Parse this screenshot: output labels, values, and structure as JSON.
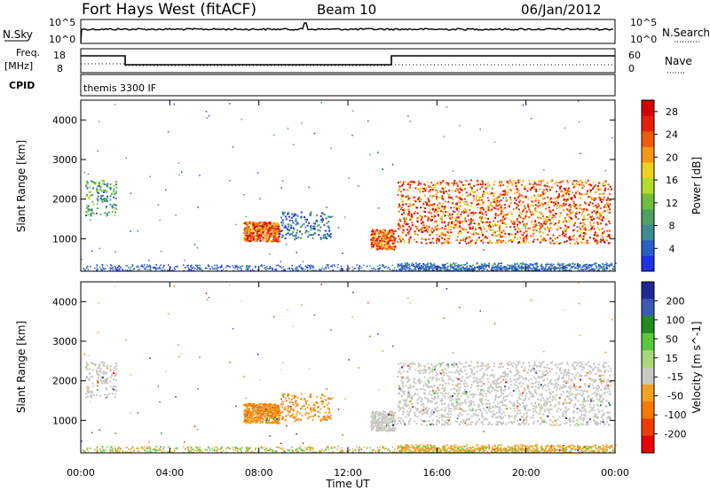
{
  "header": {
    "station": "Fort Hays West (fitACF)",
    "beam": "Beam 10",
    "date": "06/Jan/2012"
  },
  "noise_panel": {
    "left_label": "N.Sky",
    "right_label": "N.Search",
    "tick_top": "10^5",
    "tick_bottom": "10^0"
  },
  "freq_panel": {
    "left_label_1": "Freq.",
    "left_label_2": "[MHz]",
    "right_label": "Nave",
    "left_ticks": [
      "18",
      "8"
    ],
    "right_ticks": [
      "60",
      "0"
    ]
  },
  "cpid_panel": {
    "label": "CPID",
    "mode": "themis 3300 IF"
  },
  "colors": {
    "power": [
      "#1e32e6",
      "#2860c8",
      "#3c8c96",
      "#50a064",
      "#6cc03c",
      "#b4dc28",
      "#f0d21e",
      "#fa9614",
      "#f05a0a",
      "#e61e0a",
      "#d20000"
    ],
    "velocity": [
      "#e60000",
      "#f03c00",
      "#fa7800",
      "#f7a020",
      "#c8c8c0",
      "#a8d878",
      "#5ac83c",
      "#228b22",
      "#3c5ab4",
      "#1e2896"
    ]
  },
  "chart_data": [
    {
      "type": "heatmap",
      "title": "Power",
      "xlabel": "",
      "ylabel": "Slant Range [km]",
      "x_ticks": [
        "00:00",
        "04:00",
        "08:00",
        "12:00",
        "16:00",
        "20:00",
        "00:00"
      ],
      "x_range_hours": [
        0,
        24
      ],
      "y_ticks": [
        1000,
        2000,
        3000,
        4000
      ],
      "y_range_km": [
        180,
        4500
      ],
      "colorbar": {
        "label": "Power [dB]",
        "ticks": [
          4,
          8,
          12,
          16,
          20,
          24,
          28
        ],
        "range": [
          0,
          30
        ]
      },
      "features": [
        {
          "t": [
            0.2,
            1.6
          ],
          "range": [
            1600,
            2500
          ],
          "level": "low-mid"
        },
        {
          "t": [
            7.3,
            8.9
          ],
          "range": [
            950,
            1450
          ],
          "level": "high"
        },
        {
          "t": [
            8.9,
            11.2
          ],
          "range": [
            1000,
            1700
          ],
          "level": "low"
        },
        {
          "t": [
            13.0,
            14.1
          ],
          "range": [
            750,
            1250
          ],
          "level": "high"
        },
        {
          "t": [
            14.2,
            23.8
          ],
          "range": [
            900,
            2500
          ],
          "level": "high"
        },
        {
          "t": [
            14.2,
            24.0
          ],
          "range": [
            200,
            400
          ],
          "level": "low"
        }
      ]
    },
    {
      "type": "heatmap",
      "title": "Velocity",
      "xlabel": "Time UT",
      "ylabel": "Slant Range [km]",
      "x_ticks": [
        "00:00",
        "04:00",
        "08:00",
        "12:00",
        "16:00",
        "20:00",
        "00:00"
      ],
      "x_range_hours": [
        0,
        24
      ],
      "y_ticks": [
        1000,
        2000,
        3000,
        4000
      ],
      "y_range_km": [
        180,
        4500
      ],
      "colorbar": {
        "label": "Velocity [m s^-1]",
        "ticks": [
          200,
          100,
          50,
          15,
          -15,
          -50,
          -100,
          -200
        ],
        "range": [
          -250,
          250
        ]
      },
      "features": [
        {
          "t": [
            0.2,
            1.6
          ],
          "range": [
            1600,
            2500
          ],
          "velocity": "near zero"
        },
        {
          "t": [
            7.3,
            11.2
          ],
          "range": [
            950,
            1700
          ],
          "velocity": "-50 to -100"
        },
        {
          "t": [
            13.0,
            14.1
          ],
          "range": [
            750,
            1250
          ],
          "velocity": "near zero"
        },
        {
          "t": [
            14.2,
            23.8
          ],
          "range": [
            900,
            2500
          ],
          "velocity": "near zero"
        },
        {
          "t": [
            0.0,
            24.0
          ],
          "range": [
            200,
            400
          ],
          "velocity": "-50"
        }
      ]
    }
  ]
}
